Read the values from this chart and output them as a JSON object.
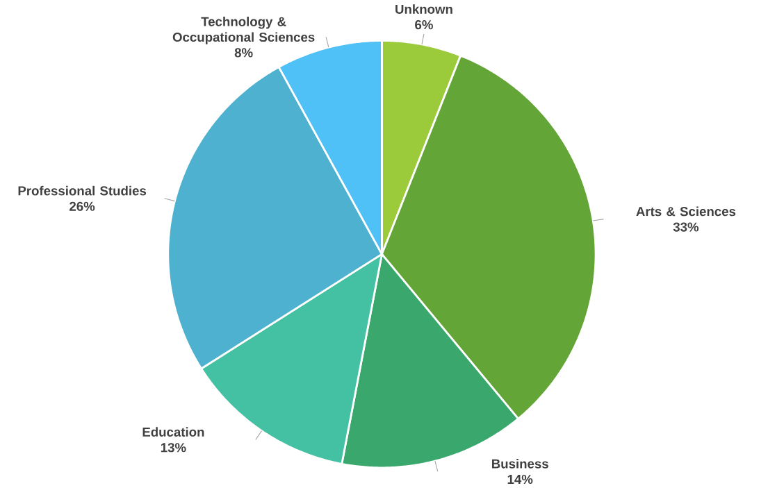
{
  "chart_data": {
    "type": "pie",
    "categories": [
      "Unknown",
      "Arts & Sciences",
      "Business",
      "Education",
      "Professional Studies",
      "Technology & Occupational Sciences"
    ],
    "values": [
      6,
      33,
      14,
      13,
      26,
      8
    ],
    "colors": [
      "#9bcb3b",
      "#63a537",
      "#3aa76d",
      "#44c1a3",
      "#4eb1cf",
      "#50c1f7"
    ],
    "value_labels": [
      "6%",
      "33%",
      "14%",
      "13%",
      "26%",
      "8%"
    ]
  }
}
